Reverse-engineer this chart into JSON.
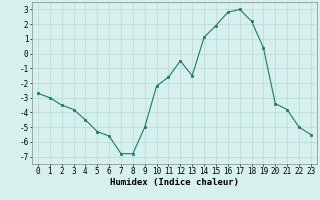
{
  "x": [
    0,
    1,
    2,
    3,
    4,
    5,
    6,
    7,
    8,
    9,
    10,
    11,
    12,
    13,
    14,
    15,
    16,
    17,
    18,
    19,
    20,
    21,
    22,
    23
  ],
  "y": [
    -2.7,
    -3.0,
    -3.5,
    -3.8,
    -4.5,
    -5.3,
    -5.6,
    -6.8,
    -6.8,
    -5.0,
    -2.2,
    -1.6,
    -0.5,
    -1.5,
    1.1,
    1.9,
    2.8,
    3.0,
    2.2,
    0.4,
    -3.4,
    -3.8,
    -5.0,
    -5.5
  ],
  "line_color": "#1a7a6e",
  "marker": "s",
  "marker_size": 2,
  "bg_color": "#d6f0ee",
  "grid_color": "#b8d8d4",
  "xlabel": "Humidex (Indice chaleur)",
  "ylim": [
    -7.5,
    3.5
  ],
  "xlim": [
    -0.5,
    23.5
  ],
  "yticks": [
    -7,
    -6,
    -5,
    -4,
    -3,
    -2,
    -1,
    0,
    1,
    2,
    3
  ],
  "xticks": [
    0,
    1,
    2,
    3,
    4,
    5,
    6,
    7,
    8,
    9,
    10,
    11,
    12,
    13,
    14,
    15,
    16,
    17,
    18,
    19,
    20,
    21,
    22,
    23
  ],
  "tick_fontsize": 5.5,
  "xlabel_fontsize": 6.5
}
